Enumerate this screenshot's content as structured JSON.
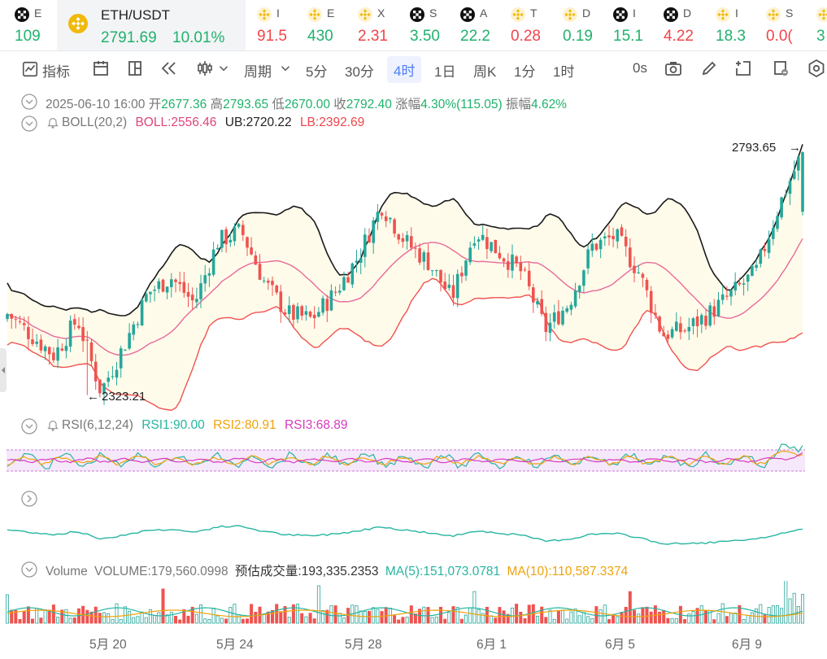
{
  "ticker": {
    "main": {
      "symbol": "ETH/USDT",
      "price": "2791.69",
      "change": "10.01%",
      "icon": "bnb-icon"
    },
    "items": [
      {
        "name": "E",
        "price": "109",
        "dir": "up",
        "icon": "okx-icon"
      },
      {
        "name": "I",
        "price": "91.5",
        "dir": "dn",
        "icon": "bnb-icon"
      },
      {
        "name": "E",
        "price": "430",
        "dir": "up",
        "icon": "bnb-icon"
      },
      {
        "name": "X",
        "price": "2.31",
        "dir": "dn",
        "icon": "bnb-icon"
      },
      {
        "name": "S",
        "price": "3.50",
        "dir": "up",
        "icon": "okx-icon"
      },
      {
        "name": "A",
        "price": "22.2",
        "dir": "up",
        "icon": "okx-icon"
      },
      {
        "name": "T",
        "price": "0.28",
        "dir": "dn",
        "icon": "bnb-icon"
      },
      {
        "name": "D",
        "price": "0.19",
        "dir": "up",
        "icon": "bnb-icon"
      },
      {
        "name": "I",
        "price": "15.1",
        "dir": "up",
        "icon": "okx-icon"
      },
      {
        "name": "D",
        "price": "4.22",
        "dir": "dn",
        "icon": "okx-icon"
      },
      {
        "name": "I",
        "price": "18.3",
        "dir": "up",
        "icon": "bnb-icon"
      },
      {
        "name": "S",
        "price": "0.0(",
        "dir": "dn",
        "icon": "bnb-icon"
      },
      {
        "name": "",
        "price": "3",
        "dir": "up",
        "icon": "bnb-icon"
      }
    ]
  },
  "toolbar": {
    "indicators": "指标",
    "period": "周期",
    "intervals": [
      "5分",
      "30分",
      "4时",
      "1日",
      "周K",
      "1分",
      "1时"
    ],
    "active_interval": "4时",
    "countdown": "0s"
  },
  "ohlc": {
    "date": "2025-06-10 16:00",
    "open_label": "开",
    "open": "2677.36",
    "high_label": "高",
    "high": "2793.65",
    "low_label": "低",
    "low": "2670.00",
    "close_label": "收",
    "close": "2792.40",
    "change_label": "涨幅",
    "change": "4.30%(115.05)",
    "amplitude_label": "振幅",
    "amplitude": "4.62%"
  },
  "boll": {
    "label": "BOLL(20,2)",
    "boll": "BOLL:2556.46",
    "ub": "UB:2720.22",
    "lb": "LB:2392.69"
  },
  "rsi": {
    "label": "RSI(6,12,24)",
    "rsi1": "RSI1:90.00",
    "rsi2": "RSI2:80.91",
    "rsi3": "RSI3:68.89"
  },
  "volume": {
    "label": "Volume",
    "volume": "VOLUME:179,560.0998",
    "estimate": "预估成交量:193,335.2353",
    "ma5": "MA(5):151,073.0781",
    "ma10": "MA(10):110,587.3374"
  },
  "chart_data": {
    "type": "candlestick",
    "title": "ETH/USDT",
    "interval": "4时",
    "x_tick_labels": [
      "5月 20",
      "5月 24",
      "5月 28",
      "6月 1",
      "6月 5",
      "6月 9"
    ],
    "price_high_marker": "2793.65",
    "price_low_marker": "2323.21",
    "approx_close_path": [
      2480,
      2440,
      2400,
      2470,
      2330,
      2420,
      2520,
      2550,
      2500,
      2620,
      2640,
      2540,
      2480,
      2470,
      2520,
      2590,
      2690,
      2620,
      2580,
      2510,
      2640,
      2600,
      2560,
      2450,
      2500,
      2610,
      2630,
      2560,
      2440,
      2450,
      2480,
      2520,
      2560,
      2690,
      2793.65
    ],
    "colors": {
      "up": "#26a69a",
      "down": "#ef5350",
      "ub": "#1a1a1a",
      "lb": "#ef5350",
      "mid": "#e96a9a",
      "band": "#fffbea"
    }
  }
}
